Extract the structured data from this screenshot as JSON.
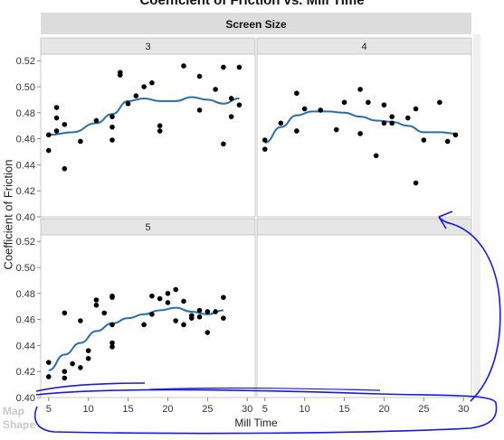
{
  "chart_data": {
    "type": "scatter",
    "title": "Coefficient of Friction vs. Mill Time",
    "group_title": "Screen Size",
    "xlabel": "Mill Time",
    "ylabel": "Coefficient of Friction",
    "xlim": [
      4,
      31
    ],
    "ylim": [
      0.4,
      0.525
    ],
    "xticks": [
      5,
      10,
      15,
      20,
      25,
      30
    ],
    "yticks": [
      0.4,
      0.42,
      0.44,
      0.46,
      0.48,
      0.5,
      0.52
    ],
    "grid": false,
    "smoother": true,
    "colors": {
      "point": "#000000",
      "smoother": "#2b6ea8",
      "annotation": "#1a1adc",
      "panel_header": "#e6e6e6",
      "background": "#ffffff"
    },
    "panels": [
      {
        "label": "3",
        "points": [
          [
            5,
            0.463
          ],
          [
            5,
            0.451
          ],
          [
            6,
            0.484
          ],
          [
            6,
            0.476
          ],
          [
            6,
            0.466
          ],
          [
            7,
            0.471
          ],
          [
            7,
            0.437
          ],
          [
            9,
            0.458
          ],
          [
            11,
            0.474
          ],
          [
            13,
            0.477
          ],
          [
            13,
            0.469
          ],
          [
            13,
            0.459
          ],
          [
            14,
            0.511
          ],
          [
            14,
            0.509
          ],
          [
            15,
            0.487
          ],
          [
            16,
            0.493
          ],
          [
            17,
            0.5
          ],
          [
            18,
            0.503
          ],
          [
            19,
            0.47
          ],
          [
            19,
            0.466
          ],
          [
            22,
            0.516
          ],
          [
            24,
            0.508
          ],
          [
            24,
            0.482
          ],
          [
            26,
            0.498
          ],
          [
            27,
            0.456
          ],
          [
            27,
            0.515
          ],
          [
            28,
            0.491
          ],
          [
            28,
            0.477
          ],
          [
            29,
            0.515
          ],
          [
            29,
            0.486
          ]
        ],
        "smoother": [
          [
            5,
            0.463
          ],
          [
            8,
            0.465
          ],
          [
            11,
            0.472
          ],
          [
            13,
            0.479
          ],
          [
            15,
            0.489
          ],
          [
            17,
            0.491
          ],
          [
            19,
            0.489
          ],
          [
            21,
            0.489
          ],
          [
            23,
            0.492
          ],
          [
            25,
            0.49
          ],
          [
            27,
            0.487
          ],
          [
            29,
            0.491
          ]
        ]
      },
      {
        "label": "4",
        "points": [
          [
            5,
            0.459
          ],
          [
            5,
            0.452
          ],
          [
            7,
            0.472
          ],
          [
            9,
            0.495
          ],
          [
            9,
            0.466
          ],
          [
            10,
            0.483
          ],
          [
            12,
            0.482
          ],
          [
            14,
            0.467
          ],
          [
            15,
            0.488
          ],
          [
            17,
            0.498
          ],
          [
            17,
            0.464
          ],
          [
            18,
            0.488
          ],
          [
            19,
            0.447
          ],
          [
            20,
            0.486
          ],
          [
            20,
            0.472
          ],
          [
            21,
            0.477
          ],
          [
            21,
            0.472
          ],
          [
            23,
            0.476
          ],
          [
            24,
            0.483
          ],
          [
            24,
            0.426
          ],
          [
            25,
            0.459
          ],
          [
            27,
            0.488
          ],
          [
            28,
            0.458
          ],
          [
            29,
            0.463
          ]
        ],
        "smoother": [
          [
            5,
            0.457
          ],
          [
            7,
            0.469
          ],
          [
            9,
            0.478
          ],
          [
            11,
            0.481
          ],
          [
            13,
            0.481
          ],
          [
            15,
            0.48
          ],
          [
            17,
            0.477
          ],
          [
            19,
            0.474
          ],
          [
            21,
            0.473
          ],
          [
            23,
            0.47
          ],
          [
            25,
            0.465
          ],
          [
            27,
            0.465
          ],
          [
            29,
            0.464
          ]
        ]
      },
      {
        "label": "5",
        "points": [
          [
            5,
            0.427
          ],
          [
            5,
            0.416
          ],
          [
            7,
            0.42
          ],
          [
            7,
            0.415
          ],
          [
            7,
            0.465
          ],
          [
            8,
            0.426
          ],
          [
            9,
            0.423
          ],
          [
            9,
            0.459
          ],
          [
            10,
            0.436
          ],
          [
            10,
            0.43
          ],
          [
            11,
            0.475
          ],
          [
            11,
            0.471
          ],
          [
            12,
            0.465
          ],
          [
            13,
            0.478
          ],
          [
            13,
            0.477
          ],
          [
            13,
            0.456
          ],
          [
            13,
            0.442
          ],
          [
            13,
            0.439
          ],
          [
            17,
            0.456
          ],
          [
            18,
            0.478
          ],
          [
            18,
            0.464
          ],
          [
            19,
            0.476
          ],
          [
            20,
            0.48
          ],
          [
            20,
            0.473
          ],
          [
            21,
            0.483
          ],
          [
            21,
            0.459
          ],
          [
            22,
            0.456
          ],
          [
            22,
            0.474
          ],
          [
            23,
            0.461
          ],
          [
            23,
            0.463
          ],
          [
            24,
            0.467
          ],
          [
            24,
            0.462
          ],
          [
            25,
            0.45
          ],
          [
            25,
            0.466
          ],
          [
            26,
            0.466
          ],
          [
            27,
            0.477
          ],
          [
            27,
            0.461
          ]
        ],
        "smoother": [
          [
            5,
            0.421
          ],
          [
            7,
            0.433
          ],
          [
            9,
            0.442
          ],
          [
            11,
            0.451
          ],
          [
            13,
            0.457
          ],
          [
            15,
            0.461
          ],
          [
            17,
            0.464
          ],
          [
            19,
            0.467
          ],
          [
            21,
            0.469
          ],
          [
            23,
            0.466
          ],
          [
            25,
            0.464
          ],
          [
            27,
            0.467
          ]
        ]
      },
      {
        "label": "",
        "points": [],
        "smoother": []
      }
    ]
  },
  "sidebar": {
    "text_1": "Map",
    "text_2": "Shape"
  }
}
